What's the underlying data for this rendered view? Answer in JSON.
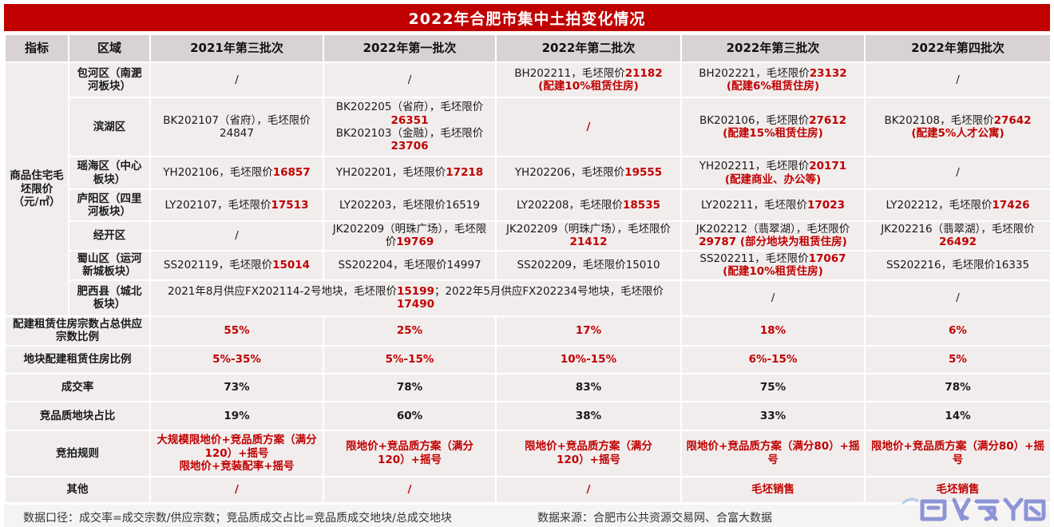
{
  "title": "2022年合肥市集中土拍变化情况",
  "header": [
    "指标",
    "区域",
    "2021年第三批次",
    "2022年第一批次",
    "2022年第二批次",
    "2022年第三批次",
    "2022年第四批次"
  ],
  "price": {
    "label": "商品住宅毛坯限价（元/㎡）",
    "rows": [
      {
        "region": "包河区（南淝河板块）",
        "cells": [
          [
            {
              "t": "/",
              "c": "k"
            }
          ],
          [
            {
              "t": "/",
              "c": "k"
            }
          ],
          [
            {
              "t": "BH202211，毛坯限价",
              "c": "k"
            },
            {
              "t": "21182",
              "c": "r"
            },
            {
              "t": "(配建10%租赁住房)",
              "c": "r",
              "br": true
            }
          ],
          [
            {
              "t": "BH202221，毛坯限价",
              "c": "k"
            },
            {
              "t": "23132",
              "c": "r"
            },
            {
              "t": "(配建6%租赁住房)",
              "c": "r",
              "br": true
            }
          ],
          [
            {
              "t": "/",
              "c": "k"
            }
          ]
        ]
      },
      {
        "region": "滨湖区",
        "cells": [
          [
            {
              "t": "BK202107（省府），毛坯限价24847",
              "c": "k"
            }
          ],
          [
            {
              "t": "BK202205（省府），毛坯限价",
              "c": "k"
            },
            {
              "t": "26351",
              "c": "r"
            },
            {
              "t": "BK202103（金融），毛坯限价",
              "c": "k",
              "br": true
            },
            {
              "t": "23706",
              "c": "r"
            }
          ],
          [
            {
              "t": "/",
              "c": "r"
            }
          ],
          [
            {
              "t": "BK202106，毛坯限价",
              "c": "k"
            },
            {
              "t": "27612",
              "c": "r"
            },
            {
              "t": "(配建15%租赁住房)",
              "c": "r",
              "br": true
            }
          ],
          [
            {
              "t": "BK202108，毛坯限价",
              "c": "k"
            },
            {
              "t": "27642",
              "c": "r"
            },
            {
              "t": "(配建5%人才公寓)",
              "c": "r",
              "br": true
            }
          ]
        ]
      },
      {
        "region": "瑶海区（中心板块）",
        "cells": [
          [
            {
              "t": "YH202106，毛坯限价",
              "c": "k"
            },
            {
              "t": "16857",
              "c": "r"
            }
          ],
          [
            {
              "t": "YH202201，毛坯限价",
              "c": "k"
            },
            {
              "t": "17218",
              "c": "r"
            }
          ],
          [
            {
              "t": "YH202206，毛坯限价",
              "c": "k"
            },
            {
              "t": "19555",
              "c": "r"
            }
          ],
          [
            {
              "t": "YH202211，毛坯限价",
              "c": "k"
            },
            {
              "t": "20171",
              "c": "r"
            },
            {
              "t": "(配建商业、办公等)",
              "c": "r",
              "br": true
            }
          ],
          [
            {
              "t": "/",
              "c": "k"
            }
          ]
        ]
      },
      {
        "region": "庐阳区（四里河板块）",
        "cells": [
          [
            {
              "t": "LY202107，毛坯限价",
              "c": "k"
            },
            {
              "t": "17513",
              "c": "r"
            }
          ],
          [
            {
              "t": "LY202203，毛坯限价16519",
              "c": "k"
            }
          ],
          [
            {
              "t": "LY202208，毛坯限价",
              "c": "k"
            },
            {
              "t": "18535",
              "c": "r"
            }
          ],
          [
            {
              "t": "LY202211，毛坯限价",
              "c": "k"
            },
            {
              "t": "17023",
              "c": "r"
            }
          ],
          [
            {
              "t": "LY202212，毛坯限价",
              "c": "k"
            },
            {
              "t": "17426",
              "c": "r"
            }
          ]
        ]
      },
      {
        "region": "经开区",
        "cells": [
          [
            {
              "t": "/",
              "c": "k"
            }
          ],
          [
            {
              "t": "JK202209（明珠广场），毛坯限价",
              "c": "k"
            },
            {
              "t": "19769",
              "c": "r"
            }
          ],
          [
            {
              "t": "JK202209（明珠广场），毛坯限价",
              "c": "k"
            },
            {
              "t": "21412",
              "c": "r"
            }
          ],
          [
            {
              "t": "JK202212（翡翠湖），毛坯限价",
              "c": "k"
            },
            {
              "t": "29787 (部分地块为租赁住房)",
              "c": "r"
            }
          ],
          [
            {
              "t": "JK202216（翡翠湖），毛坯限价",
              "c": "k"
            },
            {
              "t": "26492",
              "c": "r"
            }
          ]
        ]
      },
      {
        "region": "蜀山区（运河新城板块）",
        "cells": [
          [
            {
              "t": "SS202119，毛坯限价",
              "c": "k"
            },
            {
              "t": "15014",
              "c": "r"
            }
          ],
          [
            {
              "t": "SS202204，毛坯限价14997",
              "c": "k"
            }
          ],
          [
            {
              "t": "SS202209，毛坯限价15010",
              "c": "k"
            }
          ],
          [
            {
              "t": "SS202211，毛坯限价",
              "c": "k"
            },
            {
              "t": "17067",
              "c": "r"
            },
            {
              "t": "(配建10%租赁住房)",
              "c": "r",
              "br": true
            }
          ],
          [
            {
              "t": "SS202216，毛坯限价16335",
              "c": "k"
            }
          ]
        ]
      },
      {
        "region": "肥西县（城北板块）",
        "cells": [
          [
            {
              "t": "2021年8月供应FX202114-2号地块，毛坯限价",
              "c": "k"
            },
            {
              "t": "15199",
              "c": "r"
            },
            {
              "t": "；2022年5月供应FX202234号地块，毛坯限价",
              "c": "k"
            },
            {
              "t": "17490",
              "c": "r"
            }
          ],
          [
            {
              "t": "/",
              "c": "k"
            }
          ],
          [
            {
              "t": "/",
              "c": "k"
            }
          ]
        ]
      }
    ]
  },
  "metrics": [
    {
      "label": "配建租赁住房宗数占总供应宗数比例",
      "cells": [
        [
          {
            "t": "55%",
            "c": "r"
          }
        ],
        [
          {
            "t": "25%",
            "c": "r"
          }
        ],
        [
          {
            "t": "17%",
            "c": "r"
          }
        ],
        [
          {
            "t": "18%",
            "c": "r"
          }
        ],
        [
          {
            "t": "6%",
            "c": "r"
          }
        ]
      ]
    },
    {
      "label": "地块配建租赁住房比例",
      "cells": [
        [
          {
            "t": "5%-35%",
            "c": "r"
          }
        ],
        [
          {
            "t": "5%-15%",
            "c": "r"
          }
        ],
        [
          {
            "t": "10%-15%",
            "c": "r"
          }
        ],
        [
          {
            "t": "6%-15%",
            "c": "r"
          }
        ],
        [
          {
            "t": "5%",
            "c": "r"
          }
        ]
      ]
    },
    {
      "label": "成交率",
      "cells": [
        [
          {
            "t": "73%",
            "c": "b"
          }
        ],
        [
          {
            "t": "78%",
            "c": "b"
          }
        ],
        [
          {
            "t": "83%",
            "c": "b"
          }
        ],
        [
          {
            "t": "75%",
            "c": "b"
          }
        ],
        [
          {
            "t": "78%",
            "c": "b"
          }
        ]
      ]
    },
    {
      "label": "竞品质地块占比",
      "cells": [
        [
          {
            "t": "19%",
            "c": "b"
          }
        ],
        [
          {
            "t": "60%",
            "c": "b"
          }
        ],
        [
          {
            "t": "38%",
            "c": "b"
          }
        ],
        [
          {
            "t": "33%",
            "c": "b"
          }
        ],
        [
          {
            "t": "14%",
            "c": "b"
          }
        ]
      ]
    },
    {
      "label": "竞拍规则",
      "cells": [
        [
          {
            "t": "大规模限地价+竞品质方案（满分120）+摇号",
            "c": "r"
          },
          {
            "t": "限地价+竞装配率+摇号",
            "c": "r",
            "br": true
          }
        ],
        [
          {
            "t": "限地价+竞品质方案（满分120）+摇号",
            "c": "r"
          }
        ],
        [
          {
            "t": "限地价+竞品质方案（满分120）+摇号",
            "c": "r"
          }
        ],
        [
          {
            "t": "限地价+竞品质方案（满分80）+摇号",
            "c": "r"
          }
        ],
        [
          {
            "t": "限地价+竞品质方案（满分80）+摇号",
            "c": "r"
          }
        ]
      ]
    },
    {
      "label": "其他",
      "cells": [
        [
          {
            "t": "/",
            "c": "r"
          }
        ],
        [
          {
            "t": "/",
            "c": "r"
          }
        ],
        [
          {
            "t": "/",
            "c": "r"
          }
        ],
        [
          {
            "t": "毛坯销售",
            "c": "r"
          }
        ],
        [
          {
            "t": "毛坯销售",
            "c": "r"
          }
        ]
      ]
    }
  ],
  "footer": {
    "left": "数据口径：成交率=成交宗数/供应宗数；竞品质成交占比=竞品质成交地块/总成交地块",
    "right": "数据来源：合肥市公共资源交易网、合富大数据"
  },
  "colors": {
    "accent_red": "#C00000",
    "header_bg": "#D9D2D2",
    "cell_bg": "#F2EDED",
    "watermark_blue": "#7B84D2"
  }
}
